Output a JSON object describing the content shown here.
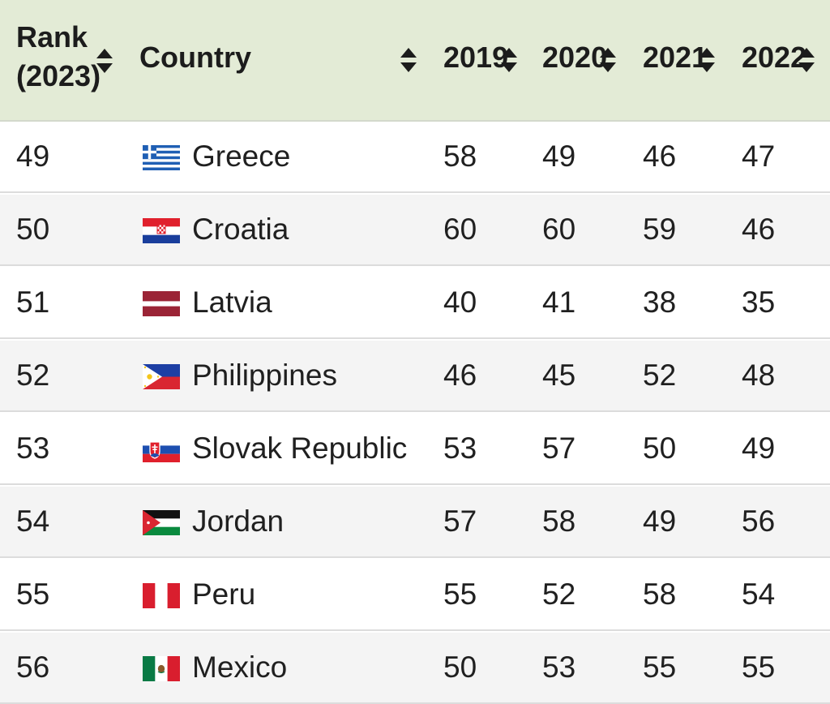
{
  "table": {
    "headers": {
      "rank": [
        "Rank",
        "(2023)"
      ],
      "country": "Country",
      "years": [
        "2019",
        "2020",
        "2021",
        "2022"
      ]
    },
    "rows": [
      {
        "rank": "49",
        "country": "Greece",
        "flag": "greece-flag-icon",
        "values": [
          "58",
          "49",
          "46",
          "47"
        ]
      },
      {
        "rank": "50",
        "country": "Croatia",
        "flag": "croatia-flag-icon",
        "values": [
          "60",
          "60",
          "59",
          "46"
        ]
      },
      {
        "rank": "51",
        "country": "Latvia",
        "flag": "latvia-flag-icon",
        "values": [
          "40",
          "41",
          "38",
          "35"
        ]
      },
      {
        "rank": "52",
        "country": "Philippines",
        "flag": "philippines-flag-icon",
        "values": [
          "46",
          "45",
          "52",
          "48"
        ]
      },
      {
        "rank": "53",
        "country": "Slovak Republic",
        "flag": "slovakia-flag-icon",
        "values": [
          "53",
          "57",
          "50",
          "49"
        ]
      },
      {
        "rank": "54",
        "country": "Jordan",
        "flag": "jordan-flag-icon",
        "values": [
          "57",
          "58",
          "49",
          "56"
        ]
      },
      {
        "rank": "55",
        "country": "Peru",
        "flag": "peru-flag-icon",
        "values": [
          "55",
          "52",
          "58",
          "54"
        ]
      },
      {
        "rank": "56",
        "country": "Mexico",
        "flag": "mexico-flag-icon",
        "values": [
          "50",
          "53",
          "55",
          "55"
        ]
      }
    ]
  },
  "colors": {
    "header_bg": "#e3ebd6",
    "row_alt_bg": "#f4f4f4",
    "divider": "#dcdcdc"
  }
}
